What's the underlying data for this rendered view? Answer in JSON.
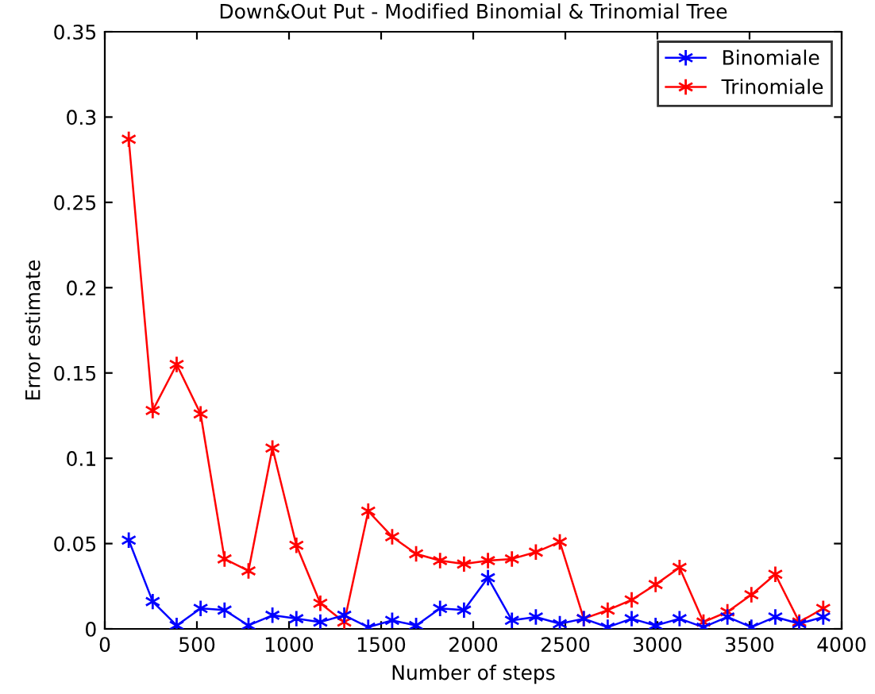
{
  "chart_data": {
    "type": "line",
    "title": "Down&Out Put - Modified Binomial & Trinomial Tree",
    "xlabel": "Number of steps",
    "ylabel": "Error estimate",
    "x": [
      130,
      260,
      390,
      520,
      650,
      780,
      910,
      1040,
      1170,
      1300,
      1430,
      1560,
      1690,
      1820,
      1950,
      2080,
      2210,
      2340,
      2470,
      2600,
      2730,
      2860,
      2990,
      3120,
      3250,
      3380,
      3510,
      3640,
      3770,
      3900
    ],
    "series": [
      {
        "name": "Binomiale",
        "color": "#0000ff",
        "values": [
          0.052,
          0.016,
          0.002,
          0.012,
          0.011,
          0.002,
          0.008,
          0.006,
          0.004,
          0.008,
          0.001,
          0.005,
          0.002,
          0.012,
          0.011,
          0.03,
          0.005,
          0.007,
          0.003,
          0.006,
          0.001,
          0.006,
          0.002,
          0.006,
          0.001,
          0.007,
          0.001,
          0.007,
          0.003,
          0.007
        ]
      },
      {
        "name": "Trinomiale",
        "color": "#ff0000",
        "values": [
          0.287,
          0.128,
          0.155,
          0.126,
          0.041,
          0.034,
          0.106,
          0.049,
          0.015,
          0.004,
          0.069,
          0.054,
          0.044,
          0.04,
          0.038,
          0.04,
          0.041,
          0.045,
          0.051,
          0.006,
          0.011,
          0.017,
          0.026,
          0.036,
          0.004,
          0.01,
          0.02,
          0.032,
          0.004,
          0.012
        ]
      }
    ],
    "xlim": [
      0,
      4000
    ],
    "xticks": [
      0,
      500,
      1000,
      1500,
      2000,
      2500,
      3000,
      3500,
      4000
    ],
    "ylim": [
      0,
      0.35
    ],
    "yticks": [
      0,
      0.05,
      0.1,
      0.15,
      0.2,
      0.25,
      0.3,
      0.35
    ],
    "grid": false,
    "legend": "top right",
    "marker": "cross",
    "line_style": "solid"
  }
}
